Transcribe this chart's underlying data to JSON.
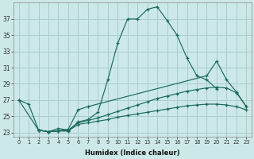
{
  "xlabel": "Humidex (Indice chaleur)",
  "background_color": "#cce8e8",
  "grid_color": "#aacccc",
  "line_color": "#1a6b5a",
  "xlim": [
    -0.5,
    23.5
  ],
  "ylim": [
    22.5,
    39.0
  ],
  "yticks": [
    23,
    25,
    27,
    29,
    31,
    33,
    35,
    37
  ],
  "xticks": [
    0,
    1,
    2,
    3,
    4,
    5,
    6,
    7,
    8,
    9,
    10,
    11,
    12,
    13,
    14,
    15,
    16,
    17,
    18,
    19,
    20,
    21,
    22,
    23
  ],
  "curve1_x": [
    0,
    1,
    2,
    3,
    4,
    5,
    6,
    7,
    8,
    9,
    10,
    11,
    12,
    13,
    14,
    15,
    16,
    17,
    18,
    19,
    20
  ],
  "curve1_y": [
    27,
    26.5,
    23.3,
    23.1,
    23.2,
    23.2,
    24.3,
    24.6,
    25.5,
    29.5,
    34,
    37,
    37,
    38.2,
    38.5,
    36.8,
    35,
    32.2,
    30.0,
    29.5,
    28.4
  ],
  "curve2_x": [
    0,
    2,
    3,
    4,
    5,
    6,
    7,
    19,
    20,
    21,
    22,
    23
  ],
  "curve2_y": [
    27,
    23.3,
    23.1,
    23.2,
    23.4,
    25.8,
    26.2,
    30.0,
    31.8,
    29.5,
    28.0,
    26.2
  ],
  "curve3_x": [
    2,
    3,
    4,
    5,
    6,
    7,
    8,
    9,
    10,
    11,
    12,
    13,
    14,
    15,
    16,
    17,
    18,
    19,
    20,
    21,
    22,
    23
  ],
  "curve3_y": [
    23.3,
    23.1,
    23.5,
    23.3,
    24.2,
    24.5,
    24.8,
    25.2,
    25.6,
    26.0,
    26.4,
    26.8,
    27.2,
    27.5,
    27.8,
    28.1,
    28.3,
    28.5,
    28.6,
    28.5,
    27.9,
    26.2
  ],
  "curve4_x": [
    2,
    3,
    4,
    5,
    6,
    7,
    8,
    9,
    10,
    11,
    12,
    13,
    14,
    15,
    16,
    17,
    18,
    19,
    20,
    21,
    22,
    23
  ],
  "curve4_y": [
    23.3,
    23.1,
    23.2,
    23.2,
    24.0,
    24.2,
    24.4,
    24.6,
    24.9,
    25.1,
    25.3,
    25.5,
    25.7,
    25.9,
    26.1,
    26.3,
    26.4,
    26.5,
    26.5,
    26.4,
    26.2,
    25.8
  ]
}
